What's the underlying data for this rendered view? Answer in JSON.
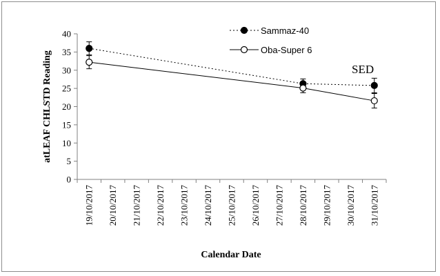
{
  "chart_data": {
    "type": "line",
    "title": "",
    "xlabel": "Calendar Date",
    "ylabel": "atLEAF CHLSTD Reading",
    "ylim": [
      0,
      40
    ],
    "yticks": [
      0,
      5,
      10,
      15,
      20,
      25,
      30,
      35,
      40
    ],
    "categories": [
      "19/10/2017",
      "20/10/2017",
      "21/10/2017",
      "22/10/2017",
      "23/10/2017",
      "24/10/2017",
      "25/10/2017",
      "26/10/2017",
      "27/10/2017",
      "28/10/2017",
      "29/10/2017",
      "30/10/2017",
      "31/10/2017"
    ],
    "grid": false,
    "legend_position": "top-right",
    "annotation": "SED",
    "series": [
      {
        "name": "Sammaz-40",
        "marker": "filled-circle",
        "line": "dotted",
        "color": "#000000",
        "points": [
          {
            "x": "19/10/2017",
            "y": 36.0,
            "err": 1.8
          },
          {
            "x": "28/10/2017",
            "y": 26.3,
            "err": 1.3
          },
          {
            "x": "31/10/2017",
            "y": 25.8,
            "err": 2.0
          }
        ]
      },
      {
        "name": "Oba-Super 6",
        "marker": "open-circle",
        "line": "solid",
        "color": "#000000",
        "points": [
          {
            "x": "19/10/2017",
            "y": 32.2,
            "err": 1.8
          },
          {
            "x": "28/10/2017",
            "y": 25.1,
            "err": 1.3
          },
          {
            "x": "31/10/2017",
            "y": 21.6,
            "err": 2.0
          }
        ]
      }
    ]
  }
}
